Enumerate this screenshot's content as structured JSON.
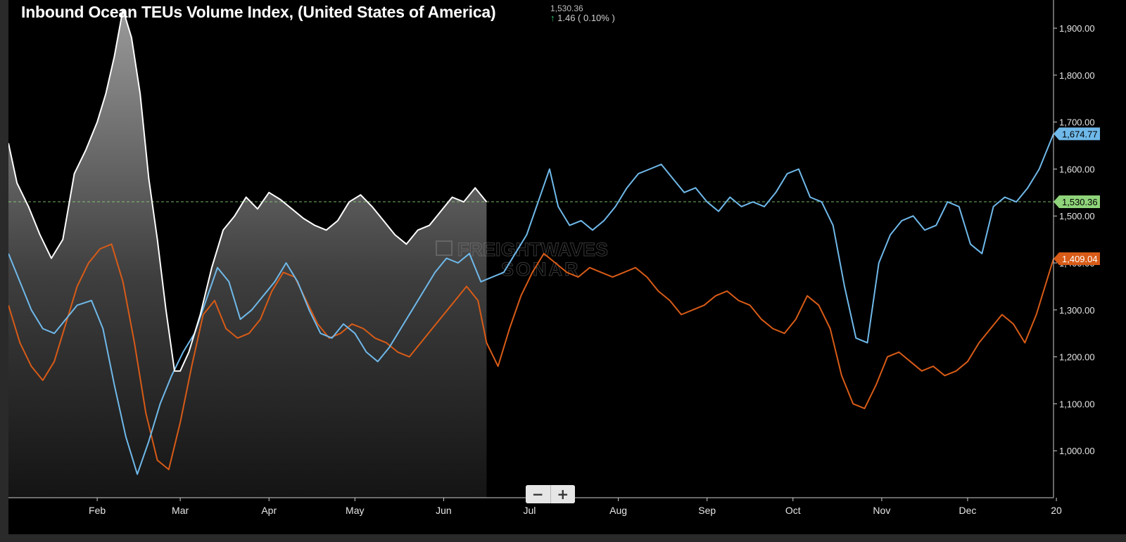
{
  "title": "Inbound Ocean TEUs Volume Index, (United States of America)",
  "header": {
    "last_value": "1,530.36",
    "change_arrow": "↑",
    "change_text": "1.46 ( 0.10% )"
  },
  "watermark": {
    "line1": "FREIGHTWAVES",
    "line2": "SONAR"
  },
  "zoom": {
    "minus": "−",
    "plus": "+"
  },
  "chart_data": {
    "type": "line",
    "x_axis": {
      "type": "date",
      "range": [
        "2020-01-01",
        "2020-12-31"
      ],
      "ticks": [
        "Feb",
        "Mar",
        "Apr",
        "May",
        "Jun",
        "Jul",
        "Aug",
        "Sep",
        "Oct",
        "Nov",
        "Dec",
        "20"
      ],
      "tick_dates": [
        "2020-02-01",
        "2020-03-01",
        "2020-04-01",
        "2020-05-01",
        "2020-06-01",
        "2020-07-01",
        "2020-08-01",
        "2020-09-01",
        "2020-10-01",
        "2020-11-01",
        "2020-12-01",
        "2021-01-01"
      ]
    },
    "y_axis": {
      "range": [
        900,
        1960
      ],
      "ticks": [
        1000,
        1100,
        1200,
        1300,
        1400,
        1500,
        1600,
        1700,
        1800,
        1900
      ],
      "tick_labels": [
        "1,000.00",
        "1,100.00",
        "1,200.00",
        "1,300.00",
        "1,400.00",
        "1,500.00",
        "1,600.00",
        "1,700.00",
        "1,800.00",
        "1,900.00"
      ],
      "position": "right"
    },
    "reference_line": {
      "value": 1530.36,
      "label": "1,530.36",
      "color": "#8fd47a",
      "style": "dashed"
    },
    "series": [
      {
        "color": "#ffffff",
        "fill": "white-gradient",
        "last_label": "1,530.36",
        "label_color": "#8fd47a",
        "points": [
          [
            "2020-01-01",
            1655
          ],
          [
            "2020-01-04",
            1570
          ],
          [
            "2020-01-08",
            1520
          ],
          [
            "2020-01-12",
            1460
          ],
          [
            "2020-01-16",
            1410
          ],
          [
            "2020-01-20",
            1450
          ],
          [
            "2020-01-24",
            1590
          ],
          [
            "2020-01-28",
            1640
          ],
          [
            "2020-02-01",
            1700
          ],
          [
            "2020-02-04",
            1760
          ],
          [
            "2020-02-07",
            1840
          ],
          [
            "2020-02-10",
            1940
          ],
          [
            "2020-02-13",
            1880
          ],
          [
            "2020-02-16",
            1760
          ],
          [
            "2020-02-19",
            1580
          ],
          [
            "2020-02-22",
            1450
          ],
          [
            "2020-02-25",
            1300
          ],
          [
            "2020-02-28",
            1170
          ],
          [
            "2020-03-01",
            1170
          ],
          [
            "2020-03-04",
            1210
          ],
          [
            "2020-03-08",
            1290
          ],
          [
            "2020-03-12",
            1390
          ],
          [
            "2020-03-16",
            1470
          ],
          [
            "2020-03-20",
            1500
          ],
          [
            "2020-03-24",
            1540
          ],
          [
            "2020-03-28",
            1515
          ],
          [
            "2020-04-01",
            1550
          ],
          [
            "2020-04-05",
            1535
          ],
          [
            "2020-04-09",
            1515
          ],
          [
            "2020-04-13",
            1495
          ],
          [
            "2020-04-17",
            1480
          ],
          [
            "2020-04-21",
            1470
          ],
          [
            "2020-04-25",
            1490
          ],
          [
            "2020-04-29",
            1530
          ],
          [
            "2020-05-03",
            1545
          ],
          [
            "2020-05-07",
            1520
          ],
          [
            "2020-05-11",
            1490
          ],
          [
            "2020-05-15",
            1460
          ],
          [
            "2020-05-19",
            1440
          ],
          [
            "2020-05-23",
            1470
          ],
          [
            "2020-05-27",
            1480
          ],
          [
            "2020-05-31",
            1510
          ],
          [
            "2020-06-04",
            1540
          ],
          [
            "2020-06-08",
            1530
          ],
          [
            "2020-06-12",
            1560
          ],
          [
            "2020-06-16",
            1530
          ]
        ]
      },
      {
        "color": "#6fb9ea",
        "last_label": "1,674.77",
        "label_color": "#6fb9ea",
        "points": [
          [
            "2020-01-01",
            1420
          ],
          [
            "2020-01-05",
            1360
          ],
          [
            "2020-01-09",
            1300
          ],
          [
            "2020-01-13",
            1260
          ],
          [
            "2020-01-17",
            1250
          ],
          [
            "2020-01-21",
            1280
          ],
          [
            "2020-01-25",
            1310
          ],
          [
            "2020-01-30",
            1320
          ],
          [
            "2020-02-03",
            1260
          ],
          [
            "2020-02-07",
            1140
          ],
          [
            "2020-02-11",
            1030
          ],
          [
            "2020-02-15",
            950
          ],
          [
            "2020-02-19",
            1020
          ],
          [
            "2020-02-23",
            1100
          ],
          [
            "2020-02-27",
            1160
          ],
          [
            "2020-03-02",
            1210
          ],
          [
            "2020-03-06",
            1250
          ],
          [
            "2020-03-10",
            1320
          ],
          [
            "2020-03-14",
            1390
          ],
          [
            "2020-03-18",
            1360
          ],
          [
            "2020-03-22",
            1280
          ],
          [
            "2020-03-26",
            1300
          ],
          [
            "2020-03-30",
            1330
          ],
          [
            "2020-04-03",
            1360
          ],
          [
            "2020-04-07",
            1400
          ],
          [
            "2020-04-11",
            1360
          ],
          [
            "2020-04-15",
            1300
          ],
          [
            "2020-04-19",
            1250
          ],
          [
            "2020-04-23",
            1240
          ],
          [
            "2020-04-27",
            1270
          ],
          [
            "2020-05-01",
            1250
          ],
          [
            "2020-05-05",
            1210
          ],
          [
            "2020-05-09",
            1190
          ],
          [
            "2020-05-13",
            1220
          ],
          [
            "2020-05-17",
            1260
          ],
          [
            "2020-05-21",
            1300
          ],
          [
            "2020-05-25",
            1340
          ],
          [
            "2020-05-29",
            1380
          ],
          [
            "2020-06-02",
            1410
          ],
          [
            "2020-06-06",
            1400
          ],
          [
            "2020-06-10",
            1420
          ],
          [
            "2020-06-14",
            1360
          ],
          [
            "2020-06-18",
            1370
          ],
          [
            "2020-06-22",
            1380
          ],
          [
            "2020-06-26",
            1420
          ],
          [
            "2020-06-30",
            1460
          ],
          [
            "2020-07-04",
            1530
          ],
          [
            "2020-07-08",
            1600
          ],
          [
            "2020-07-11",
            1520
          ],
          [
            "2020-07-15",
            1480
          ],
          [
            "2020-07-19",
            1490
          ],
          [
            "2020-07-23",
            1470
          ],
          [
            "2020-07-27",
            1490
          ],
          [
            "2020-07-31",
            1520
          ],
          [
            "2020-08-04",
            1560
          ],
          [
            "2020-08-08",
            1590
          ],
          [
            "2020-08-12",
            1600
          ],
          [
            "2020-08-16",
            1610
          ],
          [
            "2020-08-20",
            1580
          ],
          [
            "2020-08-24",
            1550
          ],
          [
            "2020-08-28",
            1560
          ],
          [
            "2020-09-01",
            1530
          ],
          [
            "2020-09-05",
            1510
          ],
          [
            "2020-09-09",
            1540
          ],
          [
            "2020-09-13",
            1520
          ],
          [
            "2020-09-17",
            1530
          ],
          [
            "2020-09-21",
            1520
          ],
          [
            "2020-09-25",
            1550
          ],
          [
            "2020-09-29",
            1590
          ],
          [
            "2020-10-03",
            1600
          ],
          [
            "2020-10-07",
            1540
          ],
          [
            "2020-10-11",
            1530
          ],
          [
            "2020-10-15",
            1480
          ],
          [
            "2020-10-19",
            1350
          ],
          [
            "2020-10-23",
            1240
          ],
          [
            "2020-10-27",
            1230
          ],
          [
            "2020-10-31",
            1400
          ],
          [
            "2020-11-04",
            1460
          ],
          [
            "2020-11-08",
            1490
          ],
          [
            "2020-11-12",
            1500
          ],
          [
            "2020-11-16",
            1470
          ],
          [
            "2020-11-20",
            1480
          ],
          [
            "2020-11-24",
            1530
          ],
          [
            "2020-11-28",
            1520
          ],
          [
            "2020-12-02",
            1440
          ],
          [
            "2020-12-06",
            1420
          ],
          [
            "2020-12-10",
            1520
          ],
          [
            "2020-12-14",
            1540
          ],
          [
            "2020-12-18",
            1530
          ],
          [
            "2020-12-22",
            1560
          ],
          [
            "2020-12-26",
            1600
          ],
          [
            "2020-12-31",
            1675
          ]
        ]
      },
      {
        "color": "#d85b17",
        "last_label": "1,409.04",
        "label_color": "#d85b17",
        "points": [
          [
            "2020-01-01",
            1310
          ],
          [
            "2020-01-05",
            1230
          ],
          [
            "2020-01-09",
            1180
          ],
          [
            "2020-01-13",
            1150
          ],
          [
            "2020-01-17",
            1190
          ],
          [
            "2020-01-21",
            1270
          ],
          [
            "2020-01-25",
            1350
          ],
          [
            "2020-01-29",
            1400
          ],
          [
            "2020-02-02",
            1430
          ],
          [
            "2020-02-06",
            1440
          ],
          [
            "2020-02-10",
            1360
          ],
          [
            "2020-02-14",
            1230
          ],
          [
            "2020-02-18",
            1080
          ],
          [
            "2020-02-22",
            980
          ],
          [
            "2020-02-26",
            960
          ],
          [
            "2020-03-01",
            1060
          ],
          [
            "2020-03-05",
            1180
          ],
          [
            "2020-03-09",
            1290
          ],
          [
            "2020-03-13",
            1320
          ],
          [
            "2020-03-17",
            1260
          ],
          [
            "2020-03-21",
            1240
          ],
          [
            "2020-03-25",
            1250
          ],
          [
            "2020-03-29",
            1280
          ],
          [
            "2020-04-02",
            1340
          ],
          [
            "2020-04-06",
            1380
          ],
          [
            "2020-04-10",
            1370
          ],
          [
            "2020-04-14",
            1320
          ],
          [
            "2020-04-18",
            1270
          ],
          [
            "2020-04-22",
            1240
          ],
          [
            "2020-04-26",
            1250
          ],
          [
            "2020-04-30",
            1270
          ],
          [
            "2020-05-04",
            1260
          ],
          [
            "2020-05-08",
            1240
          ],
          [
            "2020-05-12",
            1230
          ],
          [
            "2020-05-16",
            1210
          ],
          [
            "2020-05-20",
            1200
          ],
          [
            "2020-05-24",
            1230
          ],
          [
            "2020-05-28",
            1260
          ],
          [
            "2020-06-01",
            1290
          ],
          [
            "2020-06-05",
            1320
          ],
          [
            "2020-06-09",
            1350
          ],
          [
            "2020-06-13",
            1320
          ],
          [
            "2020-06-16",
            1230
          ],
          [
            "2020-06-20",
            1180
          ],
          [
            "2020-06-24",
            1260
          ],
          [
            "2020-06-28",
            1330
          ],
          [
            "2020-07-02",
            1380
          ],
          [
            "2020-07-06",
            1420
          ],
          [
            "2020-07-10",
            1400
          ],
          [
            "2020-07-14",
            1380
          ],
          [
            "2020-07-18",
            1370
          ],
          [
            "2020-07-22",
            1390
          ],
          [
            "2020-07-26",
            1380
          ],
          [
            "2020-07-30",
            1370
          ],
          [
            "2020-08-03",
            1380
          ],
          [
            "2020-08-07",
            1390
          ],
          [
            "2020-08-11",
            1370
          ],
          [
            "2020-08-15",
            1340
          ],
          [
            "2020-08-19",
            1320
          ],
          [
            "2020-08-23",
            1290
          ],
          [
            "2020-08-27",
            1300
          ],
          [
            "2020-08-31",
            1310
          ],
          [
            "2020-09-04",
            1330
          ],
          [
            "2020-09-08",
            1340
          ],
          [
            "2020-09-12",
            1320
          ],
          [
            "2020-09-16",
            1310
          ],
          [
            "2020-09-20",
            1280
          ],
          [
            "2020-09-24",
            1260
          ],
          [
            "2020-09-28",
            1250
          ],
          [
            "2020-10-02",
            1280
          ],
          [
            "2020-10-06",
            1330
          ],
          [
            "2020-10-10",
            1310
          ],
          [
            "2020-10-14",
            1260
          ],
          [
            "2020-10-18",
            1160
          ],
          [
            "2020-10-22",
            1100
          ],
          [
            "2020-10-26",
            1090
          ],
          [
            "2020-10-30",
            1140
          ],
          [
            "2020-11-03",
            1200
          ],
          [
            "2020-11-07",
            1210
          ],
          [
            "2020-11-11",
            1190
          ],
          [
            "2020-11-15",
            1170
          ],
          [
            "2020-11-19",
            1180
          ],
          [
            "2020-11-23",
            1160
          ],
          [
            "2020-11-27",
            1170
          ],
          [
            "2020-12-01",
            1190
          ],
          [
            "2020-12-05",
            1230
          ],
          [
            "2020-12-09",
            1260
          ],
          [
            "2020-12-13",
            1290
          ],
          [
            "2020-12-17",
            1270
          ],
          [
            "2020-12-21",
            1230
          ],
          [
            "2020-12-25",
            1290
          ],
          [
            "2020-12-31",
            1409
          ]
        ]
      }
    ],
    "grid": false,
    "legend": false
  }
}
